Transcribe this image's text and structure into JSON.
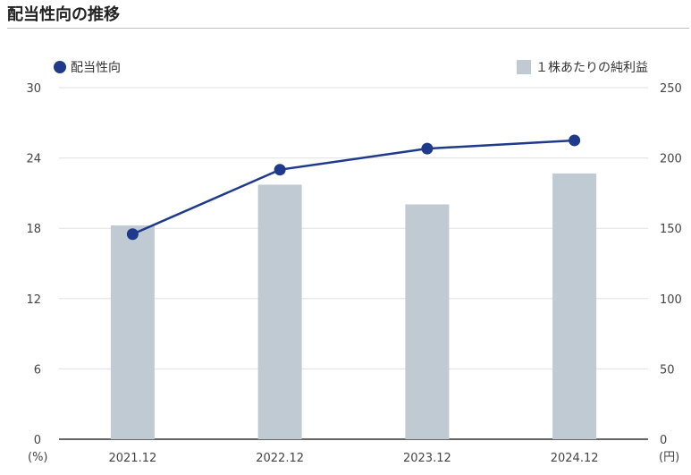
{
  "page": {
    "title": "配当性向の推移"
  },
  "chart_data": {
    "type": "bar",
    "title": "配当性向の推移",
    "categories": [
      "2021.12",
      "2022.12",
      "2023.12",
      "2024.12"
    ],
    "series": [
      {
        "name": "１株あたりの純利益",
        "type": "bar",
        "axis": "right",
        "color": "#bfcad3",
        "values": [
          152,
          181,
          167,
          189
        ]
      },
      {
        "name": "配当性向",
        "type": "line",
        "axis": "left",
        "color": "#1f3a8a",
        "values": [
          17.5,
          23.0,
          24.8,
          25.5
        ]
      }
    ],
    "y_left": {
      "ylim": [
        0,
        30
      ],
      "ticks": [
        "0",
        "6",
        "12",
        "18",
        "24",
        "30"
      ],
      "unit": "(%)"
    },
    "y_right": {
      "ylim": [
        0,
        250
      ],
      "ticks": [
        "0",
        "50",
        "100",
        "150",
        "200",
        "250"
      ],
      "unit": "(円)"
    },
    "grid": true,
    "legend": {
      "left_label": "配当性向",
      "right_label": "１株あたりの純利益",
      "placement": "top"
    }
  }
}
